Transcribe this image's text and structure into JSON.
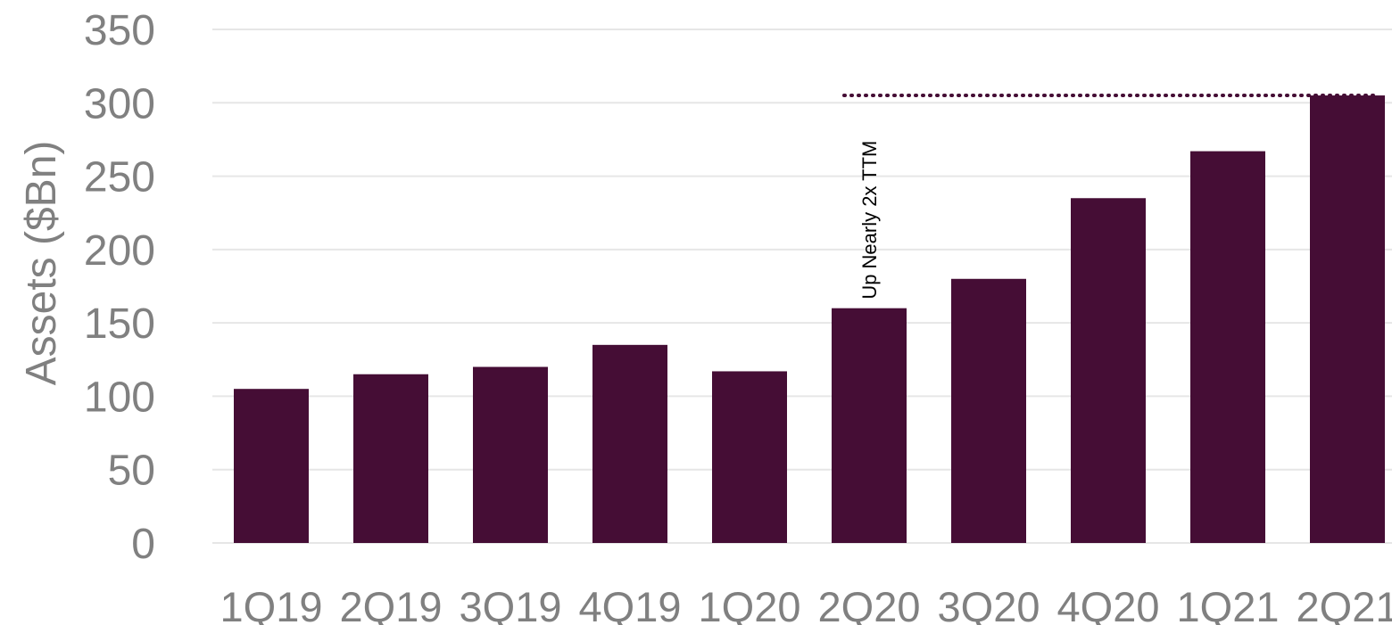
{
  "chart_data": {
    "type": "bar",
    "categories": [
      "1Q19",
      "2Q19",
      "3Q19",
      "4Q19",
      "1Q20",
      "2Q20",
      "3Q20",
      "4Q20",
      "1Q21",
      "2Q21"
    ],
    "values": [
      105,
      115,
      120,
      135,
      117,
      160,
      180,
      235,
      267,
      305
    ],
    "ylabel": "Assets ($Bn)",
    "ylim": [
      0,
      350
    ],
    "yticks": [
      0,
      50,
      100,
      150,
      200,
      250,
      300,
      350
    ],
    "grid": true,
    "reference_line": {
      "value": 305,
      "from_category": "2Q20",
      "to_category": "2Q21",
      "style": "dotted"
    },
    "annotation": {
      "text": "Up Nearly 2x TTM",
      "category": "2Q20"
    },
    "colors": {
      "bar": "#450d35",
      "grid": "#e6e6e6",
      "tick": "#808080",
      "reference_line": "#450d35",
      "annotation": "#000000"
    }
  }
}
